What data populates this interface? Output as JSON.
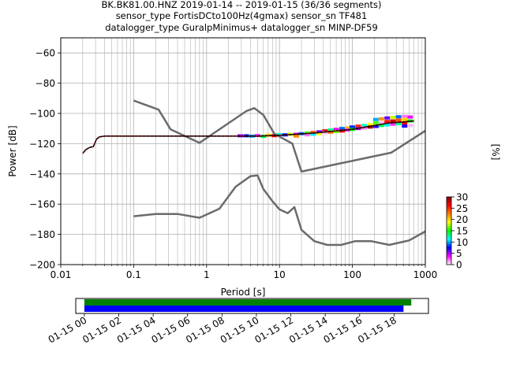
{
  "chart_data": {
    "type": "line",
    "title_lines": [
      "BK.BK81.00.HNZ   2019-01-14 -- 2019-01-15  (36/36 segments)",
      "sensor_type FortisDCto100Hz(4gmax) sensor_sn TF481",
      "datalogger_type GuralpMinimus+ datalogger_sn MINP-DF59"
    ],
    "xlabel": "Period [s]",
    "ylabel": "Power [dB]",
    "x_scale": "log",
    "xlim": [
      0.01,
      1000
    ],
    "ylim": [
      -200,
      -50
    ],
    "x_ticks": [
      "0.01",
      "0.1",
      "1",
      "10",
      "100",
      "1000"
    ],
    "y_ticks": [
      "−200",
      "−180",
      "−160",
      "−140",
      "−120",
      "−100",
      "−80",
      "−60"
    ],
    "grid": true,
    "series": [
      {
        "name": "",
        "x": [
          0.1,
          0.22,
          0.32,
          0.8,
          3.5,
          4.5,
          6.0,
          8.5,
          15,
          20,
          340,
          1000
        ],
        "y": [
          -91.5,
          -97.5,
          -110.5,
          -119.5,
          -98.5,
          -96.5,
          -101.0,
          -113.5,
          -120.0,
          -138.5,
          -126.0,
          -111.5
        ],
        "color": "#6b6b6b"
      },
      {
        "name": "",
        "x": [
          0.1,
          0.2,
          0.4,
          0.8,
          1.5,
          2.5,
          4.0,
          5.0,
          6.0,
          8.0,
          10,
          13,
          16,
          20,
          30,
          45,
          70,
          110,
          180,
          320,
          600,
          1000
        ],
        "y": [
          -168.0,
          -166.5,
          -166.5,
          -169.0,
          -163.0,
          -148.5,
          -141.5,
          -141.0,
          -150.0,
          -158.0,
          -163.5,
          -166.0,
          -162.0,
          -177.0,
          -184.5,
          -187.0,
          -187.0,
          -184.5,
          -184.5,
          -187.0,
          -184.0,
          -178.0
        ],
        "color": "#6b6b6b"
      },
      {
        "name": "",
        "x": [
          0.02,
          0.022,
          0.025,
          0.028,
          0.031,
          0.034,
          0.04,
          0.06,
          0.1,
          1,
          5,
          10,
          30,
          100,
          300,
          700
        ],
        "y": [
          -126.5,
          -124.0,
          -122.5,
          -122.0,
          -117.0,
          -115.5,
          -115.0,
          -115.0,
          -115.0,
          -115.0,
          -115.0,
          -114.5,
          -113.0,
          -110.5,
          -106.5,
          -105.0
        ],
        "color": "#000000"
      }
    ],
    "psd_cells": [
      {
        "x": 2.9,
        "y": -114.8,
        "pct": 5
      },
      {
        "x": 3.5,
        "y": -114.8,
        "pct": 8
      },
      {
        "x": 4.2,
        "y": -115.0,
        "pct": 10
      },
      {
        "x": 5.0,
        "y": -114.6,
        "pct": 3
      },
      {
        "x": 6.0,
        "y": -115.2,
        "pct": 14
      },
      {
        "x": 7.0,
        "y": -114.4,
        "pct": 20
      },
      {
        "x": 8.5,
        "y": -114.7,
        "pct": 26
      },
      {
        "x": 10,
        "y": -114.0,
        "pct": 12
      },
      {
        "x": 12,
        "y": -114.2,
        "pct": 7
      },
      {
        "x": 14,
        "y": -113.8,
        "pct": 18
      },
      {
        "x": 17,
        "y": -113.8,
        "pct": 4
      },
      {
        "x": 17,
        "y": -115.0,
        "pct": 22
      },
      {
        "x": 20,
        "y": -113.4,
        "pct": 9
      },
      {
        "x": 24,
        "y": -113.0,
        "pct": 16
      },
      {
        "x": 24,
        "y": -114.2,
        "pct": 2
      },
      {
        "x": 29,
        "y": -112.6,
        "pct": 24
      },
      {
        "x": 29,
        "y": -113.8,
        "pct": 11
      },
      {
        "x": 35,
        "y": -112.2,
        "pct": 6
      },
      {
        "x": 35,
        "y": -113.4,
        "pct": 19
      },
      {
        "x": 42,
        "y": -111.6,
        "pct": 28
      },
      {
        "x": 42,
        "y": -112.8,
        "pct": 1
      },
      {
        "x": 50,
        "y": -111.0,
        "pct": 13
      },
      {
        "x": 50,
        "y": -112.4,
        "pct": 23
      },
      {
        "x": 60,
        "y": -110.6,
        "pct": 4
      },
      {
        "x": 60,
        "y": -112.0,
        "pct": 17
      },
      {
        "x": 72,
        "y": -110.0,
        "pct": 9
      },
      {
        "x": 72,
        "y": -111.6,
        "pct": 27
      },
      {
        "x": 86,
        "y": -109.6,
        "pct": 21
      },
      {
        "x": 86,
        "y": -111.0,
        "pct": 3
      },
      {
        "x": 100,
        "y": -109.0,
        "pct": 8
      },
      {
        "x": 100,
        "y": -110.6,
        "pct": 15
      },
      {
        "x": 120,
        "y": -108.4,
        "pct": 25
      },
      {
        "x": 120,
        "y": -110.0,
        "pct": 5
      },
      {
        "x": 145,
        "y": -108.0,
        "pct": 12
      },
      {
        "x": 145,
        "y": -109.6,
        "pct": 2
      },
      {
        "x": 175,
        "y": -107.4,
        "pct": 19
      },
      {
        "x": 175,
        "y": -109.0,
        "pct": 29
      },
      {
        "x": 210,
        "y": -104.0,
        "pct": 10
      },
      {
        "x": 210,
        "y": -106.2,
        "pct": 16
      },
      {
        "x": 210,
        "y": -108.6,
        "pct": 7
      },
      {
        "x": 250,
        "y": -103.6,
        "pct": 22
      },
      {
        "x": 250,
        "y": -106.0,
        "pct": 1
      },
      {
        "x": 250,
        "y": -108.0,
        "pct": 14
      },
      {
        "x": 300,
        "y": -103.0,
        "pct": 6
      },
      {
        "x": 300,
        "y": -105.4,
        "pct": 26
      },
      {
        "x": 300,
        "y": -107.6,
        "pct": 11
      },
      {
        "x": 360,
        "y": -102.6,
        "pct": 18
      },
      {
        "x": 360,
        "y": -105.0,
        "pct": 28
      },
      {
        "x": 360,
        "y": -107.2,
        "pct": 3
      },
      {
        "x": 430,
        "y": -102.2,
        "pct": 9
      },
      {
        "x": 430,
        "y": -104.4,
        "pct": 24
      },
      {
        "x": 430,
        "y": -106.8,
        "pct": 13
      },
      {
        "x": 520,
        "y": -102.0,
        "pct": 2
      },
      {
        "x": 520,
        "y": -104.0,
        "pct": 20
      },
      {
        "x": 520,
        "y": -106.4,
        "pct": 27
      },
      {
        "x": 520,
        "y": -108.4,
        "pct": 7
      },
      {
        "x": 620,
        "y": -102.4,
        "pct": 4
      },
      {
        "x": 620,
        "y": -105.0,
        "pct": 15
      },
      {
        "x": 620,
        "y": -108.0,
        "pct": 1
      }
    ],
    "colorbar": {
      "label": "[%]",
      "range": [
        0,
        30
      ],
      "ticks": [
        "0",
        "5",
        "10",
        "15",
        "20",
        "25",
        "30"
      ],
      "stops": [
        "#ffffff",
        "#ff00ff",
        "#0000ff",
        "#00ffff",
        "#00ff00",
        "#ffff00",
        "#ff7f00",
        "#ff0000",
        "#800000"
      ]
    },
    "timeline": {
      "ticks": [
        "01-15 00",
        "01-15 02",
        "01-15 04",
        "01-15 06",
        "01-15 08",
        "01-15 10",
        "01-15 12",
        "01-15 14",
        "01-15 16",
        "01-15 18"
      ],
      "tick_hours": [
        0,
        2,
        4,
        6,
        8,
        10,
        12,
        14,
        16,
        18
      ],
      "range_hours": [
        -0.5,
        20.0
      ],
      "bars": [
        {
          "start_h": 0.0,
          "end_h": 19.0,
          "color": "#008000"
        },
        {
          "start_h": 0.0,
          "end_h": 18.55,
          "color": "#0000ff"
        }
      ]
    }
  }
}
